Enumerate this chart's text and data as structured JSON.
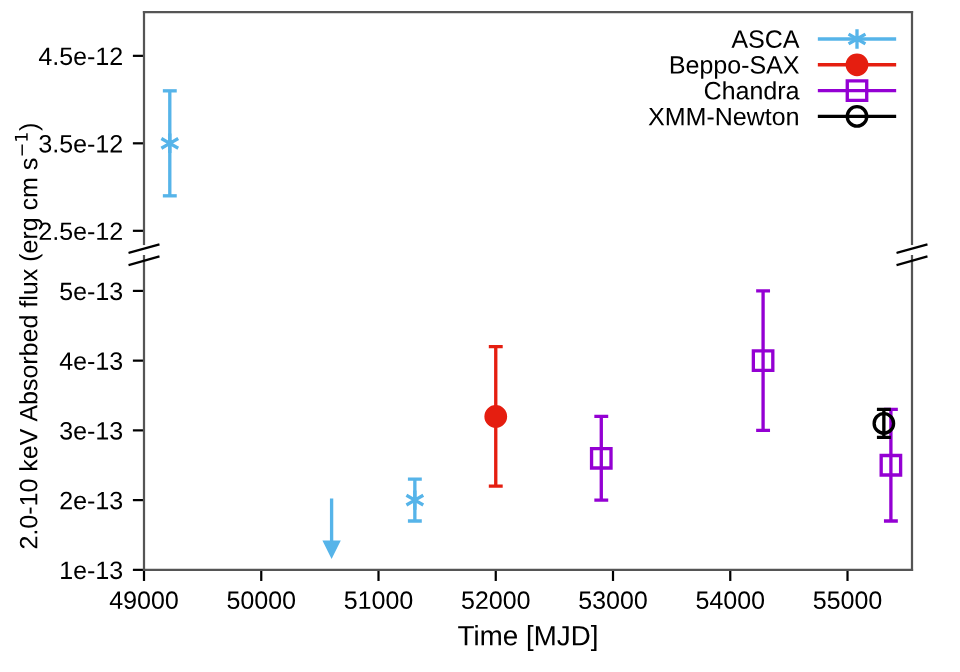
{
  "chart_data": [
    {
      "type": "scatter",
      "xlim": [
        49000,
        55550
      ],
      "ylim": [
        2.35e-12,
        5e-12
      ],
      "yticks": [
        2.5e-12,
        3.5e-12,
        4.5e-12
      ],
      "tick_labels": "y",
      "grid": false,
      "series": [
        {
          "color": "#56b4e9",
          "marker": "cross",
          "x": [
            49220
          ],
          "values": [
            3.5e-12
          ],
          "errors": [
            6e-13
          ]
        }
      ]
    },
    {
      "type": "scatter",
      "xlim": [
        49000,
        55550
      ],
      "ylim": [
        1e-13,
        5.5e-13
      ],
      "xticks": [
        49000,
        50000,
        51000,
        52000,
        53000,
        54000,
        55000
      ],
      "yticks": [
        1e-13,
        2e-13,
        3e-13,
        4e-13,
        5e-13
      ],
      "xlabel": "Time [MJD]",
      "ylabel": "2.0-10 keV Absorbed flux (erg cm s$^{−1}$)",
      "legend": "top right",
      "grid": false,
      "series": [
        {
          "name": "ASCA",
          "color": "#56b4e9",
          "marker": "cross",
          "x": [
            51310
          ],
          "values": [
            2e-13
          ],
          "errors": [
            3e-14
          ]
        },
        {
          "type": "line",
          "color": "#56b4e9",
          "marker": "triangle",
          "x": [
            50600,
            50600
          ],
          "values": [
            2e-13,
            1.3e-13
          ]
        },
        {
          "name": "Beppo-SAX",
          "color": "#e51e10",
          "marker": "circle",
          "x": [
            52000
          ],
          "values": [
            3.2e-13
          ],
          "errors": [
            1e-13
          ]
        },
        {
          "name": "Chandra",
          "color": "#9400d3",
          "marker": "square",
          "x": [
            52900,
            54280,
            55370
          ],
          "values": [
            2.6e-13,
            4e-13,
            2.5e-13
          ],
          "errors": [
            6e-14,
            1e-13,
            8e-14
          ]
        },
        {
          "name": "XMM-Newton",
          "color": "#000000",
          "marker": "circle",
          "x": [
            55310
          ],
          "values": [
            3.1e-13
          ],
          "errors": [
            2e-14
          ]
        }
      ]
    }
  ]
}
